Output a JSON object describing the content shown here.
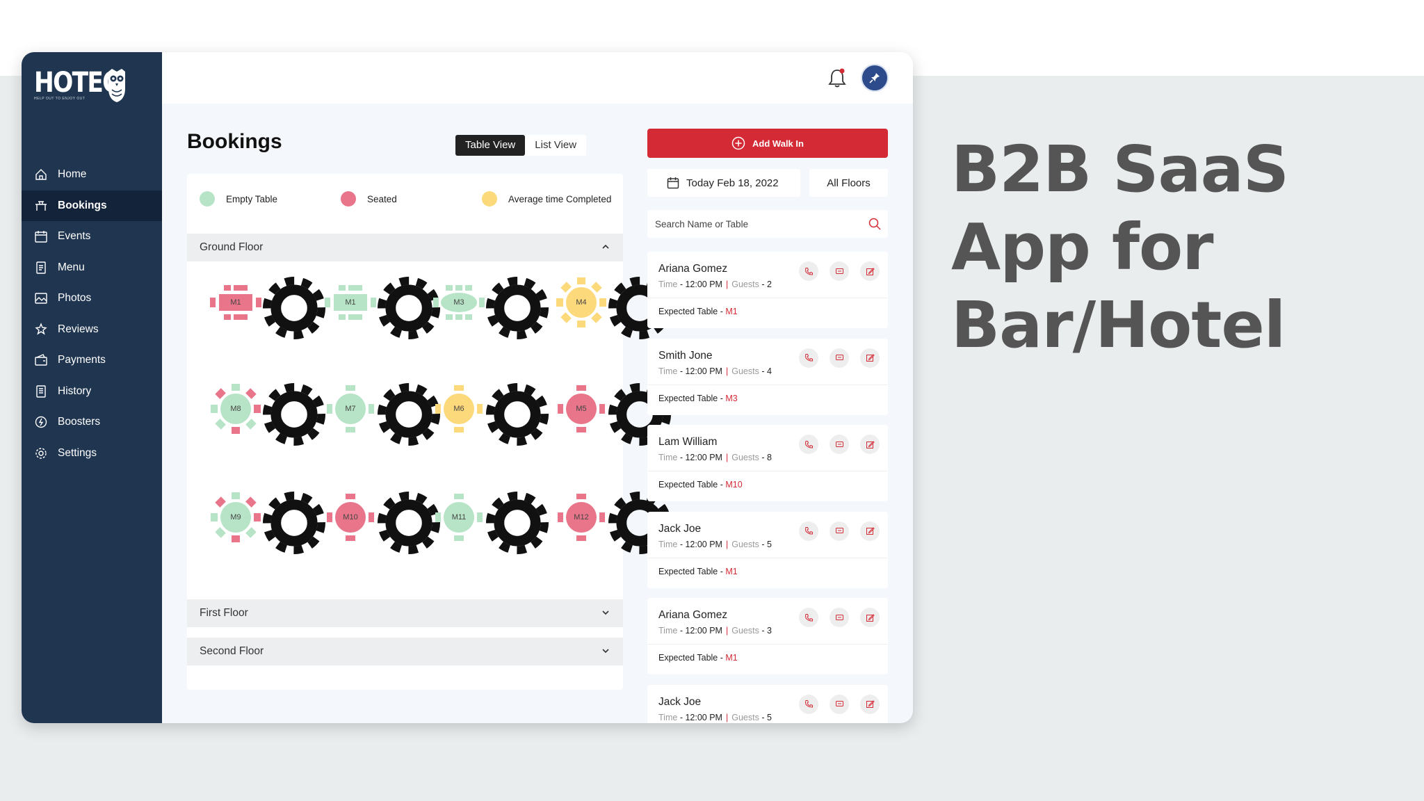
{
  "hero": {
    "line1": "B2B SaaS",
    "line2": "App for",
    "line3": "Bar/Hotel"
  },
  "brand": {
    "name": "HOTEO",
    "tagline": "HELP OUT TO ENJOY OUT"
  },
  "colors": {
    "sidebar": "#1f3550",
    "accent_red": "#d42a35",
    "empty": "#b7e4c7",
    "seated": "#e8758a",
    "average": "#fcd97a"
  },
  "sidebar": {
    "items": [
      {
        "label": "Home",
        "icon": "home-icon"
      },
      {
        "label": "Bookings",
        "icon": "bookings-icon",
        "active": true
      },
      {
        "label": "Events",
        "icon": "events-icon"
      },
      {
        "label": "Menu",
        "icon": "menu-icon"
      },
      {
        "label": "Photos",
        "icon": "photos-icon"
      },
      {
        "label": "Reviews",
        "icon": "reviews-icon"
      },
      {
        "label": "Payments",
        "icon": "payments-icon"
      },
      {
        "label": "History",
        "icon": "history-icon"
      },
      {
        "label": "Boosters",
        "icon": "boosters-icon"
      },
      {
        "label": "Settings",
        "icon": "settings-icon"
      }
    ]
  },
  "page": {
    "title": "Bookings"
  },
  "view_toggle": {
    "table": "Table View",
    "list": "List View",
    "selected": "Table View"
  },
  "legend": {
    "empty": "Empty Table",
    "seated": "Seated",
    "average": "Average time Completed"
  },
  "floors": {
    "ground": "Ground Floor",
    "first": "First Floor",
    "second": "Second Floor"
  },
  "tables": [
    {
      "id": "M1",
      "status": "seated",
      "shape": "rect"
    },
    {
      "id": "M1",
      "status": "empty",
      "shape": "rect"
    },
    {
      "id": "M3",
      "status": "empty",
      "shape": "oval"
    },
    {
      "id": "M4",
      "status": "average",
      "shape": "round8"
    },
    {
      "id": "M8",
      "status": "mixed",
      "shape": "round8"
    },
    {
      "id": "M7",
      "status": "empty",
      "shape": "round4"
    },
    {
      "id": "M6",
      "status": "average",
      "shape": "round4"
    },
    {
      "id": "M5",
      "status": "seated",
      "shape": "round4"
    },
    {
      "id": "M9",
      "status": "mixed",
      "shape": "round8"
    },
    {
      "id": "M10",
      "status": "seated",
      "shape": "round4"
    },
    {
      "id": "M11",
      "status": "empty",
      "shape": "round4"
    },
    {
      "id": "M12",
      "status": "seated",
      "shape": "round4"
    }
  ],
  "actions": {
    "add_walk_in": "Add Walk In"
  },
  "filters": {
    "date": "Today Feb 18, 2022",
    "floor": "All Floors"
  },
  "search": {
    "placeholder": "Search Name or Table"
  },
  "labels": {
    "time": "Time",
    "guests": "Guests",
    "expected_table": "Expected Table -",
    "dash": "-"
  },
  "bookings": [
    {
      "name": "Ariana Gomez",
      "time": "12:00 PM",
      "guests": "2",
      "table": "M1"
    },
    {
      "name": "Smith Jone",
      "time": "12:00 PM",
      "guests": "4",
      "table": "M3"
    },
    {
      "name": "Lam William",
      "time": "12:00 PM",
      "guests": "8",
      "table": "M10"
    },
    {
      "name": "Jack Joe",
      "time": "12:00 PM",
      "guests": "5",
      "table": "M1"
    },
    {
      "name": "Ariana Gomez",
      "time": "12:00 PM",
      "guests": "3",
      "table": "M1"
    },
    {
      "name": "Jack Joe",
      "time": "12:00 PM",
      "guests": "5",
      "table": ""
    }
  ]
}
